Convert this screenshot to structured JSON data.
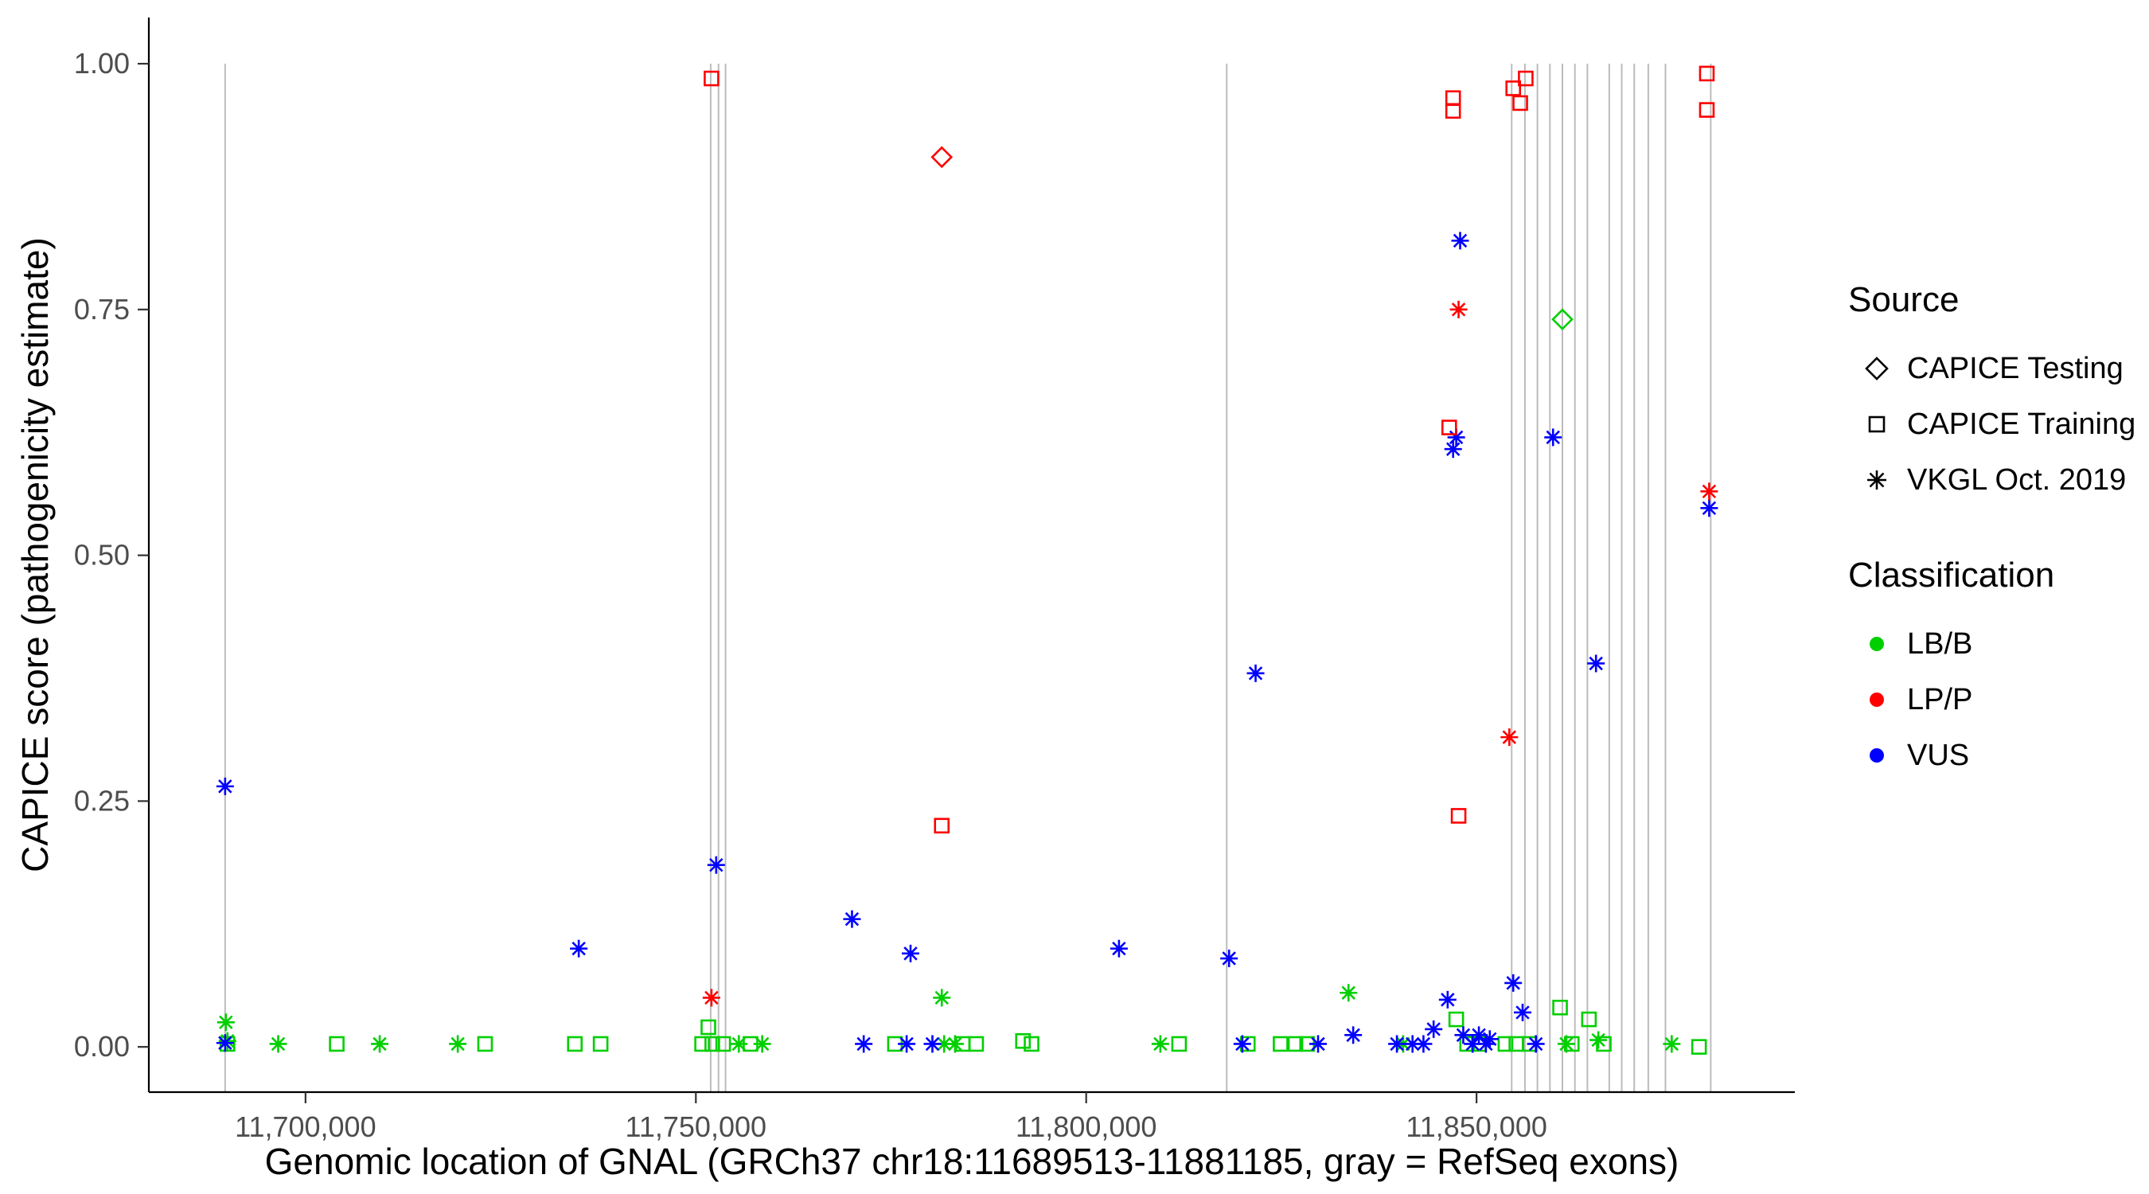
{
  "page": {
    "background": "#ffffff"
  },
  "chart_data": {
    "type": "scatter",
    "title": "",
    "xlabel": "Genomic location of GNAL (GRCh37 chr18:11689513-11881185, gray = RefSeq exons)",
    "ylabel": "CAPICE score (pathogenicity estimate)",
    "x_range": [
      11679929,
      11890769
    ],
    "y_range": [
      -0.046,
      1.047
    ],
    "x_ticks": [
      {
        "value": 11700000,
        "label": "11,700,000"
      },
      {
        "value": 11750000,
        "label": "11,750,000"
      },
      {
        "value": 11800000,
        "label": "11,800,000"
      },
      {
        "value": 11850000,
        "label": "11,850,000"
      }
    ],
    "y_ticks": [
      {
        "value": 0.0,
        "label": "0.00"
      },
      {
        "value": 0.25,
        "label": "0.25"
      },
      {
        "value": 0.5,
        "label": "0.50"
      },
      {
        "value": 0.75,
        "label": "0.75"
      },
      {
        "value": 1.0,
        "label": "1.00"
      }
    ],
    "grid": false,
    "legend_position": "right",
    "exon_color": "#bcbcbc",
    "colors": {
      "lbb": "#00CF00",
      "lpp": "#FF0000",
      "vus": "#0000FF"
    },
    "class_labels": {
      "lbb": "LB/B",
      "lpp": "LP/P",
      "vus": "VUS"
    },
    "source_labels": {
      "testing": "CAPICE Testing",
      "training": "CAPICE Training",
      "vkgl": "VKGL Oct. 2019"
    },
    "exons": [
      11689700,
      11751900,
      11752900,
      11753800,
      11818000,
      11854500,
      11856200,
      11857800,
      11859400,
      11861000,
      11862600,
      11864200,
      11867000,
      11868600,
      11870200,
      11872000,
      11874200,
      11880000
    ],
    "points": [
      {
        "x": 11690000,
        "y": 0.003,
        "source": "training",
        "cls": "lbb"
      },
      {
        "x": 11704000,
        "y": 0.003,
        "source": "training",
        "cls": "lbb"
      },
      {
        "x": 11723000,
        "y": 0.003,
        "source": "training",
        "cls": "lbb"
      },
      {
        "x": 11734500,
        "y": 0.003,
        "source": "training",
        "cls": "lbb"
      },
      {
        "x": 11737800,
        "y": 0.003,
        "source": "training",
        "cls": "lbb"
      },
      {
        "x": 11750800,
        "y": 0.003,
        "source": "training",
        "cls": "lbb"
      },
      {
        "x": 11751600,
        "y": 0.02,
        "source": "training",
        "cls": "lbb"
      },
      {
        "x": 11752100,
        "y": 0.003,
        "source": "training",
        "cls": "lbb"
      },
      {
        "x": 11753500,
        "y": 0.003,
        "source": "training",
        "cls": "lbb"
      },
      {
        "x": 11757000,
        "y": 0.003,
        "source": "training",
        "cls": "lbb"
      },
      {
        "x": 11775500,
        "y": 0.003,
        "source": "training",
        "cls": "lbb"
      },
      {
        "x": 11784200,
        "y": 0.003,
        "source": "training",
        "cls": "lbb"
      },
      {
        "x": 11785900,
        "y": 0.003,
        "source": "training",
        "cls": "lbb"
      },
      {
        "x": 11791900,
        "y": 0.006,
        "source": "training",
        "cls": "lbb"
      },
      {
        "x": 11793000,
        "y": 0.003,
        "source": "training",
        "cls": "lbb"
      },
      {
        "x": 11811900,
        "y": 0.003,
        "source": "training",
        "cls": "lbb"
      },
      {
        "x": 11820700,
        "y": 0.003,
        "source": "training",
        "cls": "lbb"
      },
      {
        "x": 11824900,
        "y": 0.003,
        "source": "training",
        "cls": "lbb"
      },
      {
        "x": 11826800,
        "y": 0.003,
        "source": "training",
        "cls": "lbb"
      },
      {
        "x": 11828300,
        "y": 0.003,
        "source": "training",
        "cls": "lbb"
      },
      {
        "x": 11847400,
        "y": 0.028,
        "source": "training",
        "cls": "lbb"
      },
      {
        "x": 11848800,
        "y": 0.003,
        "source": "training",
        "cls": "lbb"
      },
      {
        "x": 11850300,
        "y": 0.003,
        "source": "training",
        "cls": "lbb"
      },
      {
        "x": 11853700,
        "y": 0.003,
        "source": "training",
        "cls": "lbb"
      },
      {
        "x": 11855100,
        "y": 0.003,
        "source": "training",
        "cls": "lbb"
      },
      {
        "x": 11856800,
        "y": 0.003,
        "source": "training",
        "cls": "lbb"
      },
      {
        "x": 11860700,
        "y": 0.04,
        "source": "training",
        "cls": "lbb"
      },
      {
        "x": 11862200,
        "y": 0.003,
        "source": "training",
        "cls": "lbb"
      },
      {
        "x": 11864400,
        "y": 0.028,
        "source": "training",
        "cls": "lbb"
      },
      {
        "x": 11866300,
        "y": 0.003,
        "source": "training",
        "cls": "lbb"
      },
      {
        "x": 11878500,
        "y": 0.0,
        "source": "training",
        "cls": "lbb"
      },
      {
        "x": 11689800,
        "y": 0.025,
        "source": "vkgl",
        "cls": "lbb"
      },
      {
        "x": 11690000,
        "y": 0.006,
        "source": "vkgl",
        "cls": "lbb"
      },
      {
        "x": 11696500,
        "y": 0.003,
        "source": "vkgl",
        "cls": "lbb"
      },
      {
        "x": 11709500,
        "y": 0.003,
        "source": "vkgl",
        "cls": "lbb"
      },
      {
        "x": 11719500,
        "y": 0.003,
        "source": "vkgl",
        "cls": "lbb"
      },
      {
        "x": 11755500,
        "y": 0.003,
        "source": "vkgl",
        "cls": "lbb"
      },
      {
        "x": 11758500,
        "y": 0.003,
        "source": "vkgl",
        "cls": "lbb"
      },
      {
        "x": 11781500,
        "y": 0.05,
        "source": "vkgl",
        "cls": "lbb"
      },
      {
        "x": 11781800,
        "y": 0.003,
        "source": "vkgl",
        "cls": "lbb"
      },
      {
        "x": 11783200,
        "y": 0.003,
        "source": "vkgl",
        "cls": "lbb"
      },
      {
        "x": 11809500,
        "y": 0.003,
        "source": "vkgl",
        "cls": "lbb"
      },
      {
        "x": 11833600,
        "y": 0.055,
        "source": "vkgl",
        "cls": "lbb"
      },
      {
        "x": 11840600,
        "y": 0.003,
        "source": "vkgl",
        "cls": "lbb"
      },
      {
        "x": 11861500,
        "y": 0.003,
        "source": "vkgl",
        "cls": "lbb"
      },
      {
        "x": 11865600,
        "y": 0.007,
        "source": "vkgl",
        "cls": "lbb"
      },
      {
        "x": 11875000,
        "y": 0.003,
        "source": "vkgl",
        "cls": "lbb"
      },
      {
        "x": 11689700,
        "y": 0.265,
        "source": "vkgl",
        "cls": "vus"
      },
      {
        "x": 11689700,
        "y": 0.004,
        "source": "vkgl",
        "cls": "vus"
      },
      {
        "x": 11735000,
        "y": 0.1,
        "source": "vkgl",
        "cls": "vus"
      },
      {
        "x": 11752600,
        "y": 0.185,
        "source": "vkgl",
        "cls": "vus"
      },
      {
        "x": 11770000,
        "y": 0.13,
        "source": "vkgl",
        "cls": "vus"
      },
      {
        "x": 11771500,
        "y": 0.003,
        "source": "vkgl",
        "cls": "vus"
      },
      {
        "x": 11777000,
        "y": 0.003,
        "source": "vkgl",
        "cls": "vus"
      },
      {
        "x": 11777500,
        "y": 0.095,
        "source": "vkgl",
        "cls": "vus"
      },
      {
        "x": 11780300,
        "y": 0.003,
        "source": "vkgl",
        "cls": "vus"
      },
      {
        "x": 11804200,
        "y": 0.1,
        "source": "vkgl",
        "cls": "vus"
      },
      {
        "x": 11818300,
        "y": 0.09,
        "source": "vkgl",
        "cls": "vus"
      },
      {
        "x": 11820000,
        "y": 0.003,
        "source": "vkgl",
        "cls": "vus"
      },
      {
        "x": 11821700,
        "y": 0.38,
        "source": "vkgl",
        "cls": "vus"
      },
      {
        "x": 11829700,
        "y": 0.003,
        "source": "vkgl",
        "cls": "vus"
      },
      {
        "x": 11834200,
        "y": 0.012,
        "source": "vkgl",
        "cls": "vus"
      },
      {
        "x": 11839800,
        "y": 0.003,
        "source": "vkgl",
        "cls": "vus"
      },
      {
        "x": 11841800,
        "y": 0.003,
        "source": "vkgl",
        "cls": "vus"
      },
      {
        "x": 11843200,
        "y": 0.003,
        "source": "vkgl",
        "cls": "vus"
      },
      {
        "x": 11844500,
        "y": 0.018,
        "source": "vkgl",
        "cls": "vus"
      },
      {
        "x": 11846300,
        "y": 0.048,
        "source": "vkgl",
        "cls": "vus"
      },
      {
        "x": 11847000,
        "y": 0.608,
        "source": "vkgl",
        "cls": "vus"
      },
      {
        "x": 11847400,
        "y": 0.62,
        "source": "vkgl",
        "cls": "vus"
      },
      {
        "x": 11847900,
        "y": 0.82,
        "source": "vkgl",
        "cls": "vus"
      },
      {
        "x": 11848300,
        "y": 0.012,
        "source": "vkgl",
        "cls": "vus"
      },
      {
        "x": 11849500,
        "y": 0.003,
        "source": "vkgl",
        "cls": "vus"
      },
      {
        "x": 11850300,
        "y": 0.012,
        "source": "vkgl",
        "cls": "vus"
      },
      {
        "x": 11851200,
        "y": 0.003,
        "source": "vkgl",
        "cls": "vus"
      },
      {
        "x": 11851700,
        "y": 0.008,
        "source": "vkgl",
        "cls": "vus"
      },
      {
        "x": 11854700,
        "y": 0.065,
        "source": "vkgl",
        "cls": "vus"
      },
      {
        "x": 11855900,
        "y": 0.035,
        "source": "vkgl",
        "cls": "vus"
      },
      {
        "x": 11857600,
        "y": 0.003,
        "source": "vkgl",
        "cls": "vus"
      },
      {
        "x": 11859800,
        "y": 0.62,
        "source": "vkgl",
        "cls": "vus"
      },
      {
        "x": 11865300,
        "y": 0.39,
        "source": "vkgl",
        "cls": "vus"
      },
      {
        "x": 11879800,
        "y": 0.548,
        "source": "vkgl",
        "cls": "vus"
      },
      {
        "x": 11752000,
        "y": 0.985,
        "source": "training",
        "cls": "lpp"
      },
      {
        "x": 11781500,
        "y": 0.225,
        "source": "training",
        "cls": "lpp"
      },
      {
        "x": 11846500,
        "y": 0.63,
        "source": "training",
        "cls": "lpp"
      },
      {
        "x": 11847000,
        "y": 0.965,
        "source": "training",
        "cls": "lpp"
      },
      {
        "x": 11847000,
        "y": 0.952,
        "source": "training",
        "cls": "lpp"
      },
      {
        "x": 11847700,
        "y": 0.235,
        "source": "training",
        "cls": "lpp"
      },
      {
        "x": 11854700,
        "y": 0.975,
        "source": "training",
        "cls": "lpp"
      },
      {
        "x": 11855600,
        "y": 0.96,
        "source": "training",
        "cls": "lpp"
      },
      {
        "x": 11856300,
        "y": 0.985,
        "source": "training",
        "cls": "lpp"
      },
      {
        "x": 11879500,
        "y": 0.99,
        "source": "training",
        "cls": "lpp"
      },
      {
        "x": 11879500,
        "y": 0.953,
        "source": "training",
        "cls": "lpp"
      },
      {
        "x": 11752000,
        "y": 0.05,
        "source": "vkgl",
        "cls": "lpp"
      },
      {
        "x": 11847700,
        "y": 0.75,
        "source": "vkgl",
        "cls": "lpp"
      },
      {
        "x": 11854200,
        "y": 0.315,
        "source": "vkgl",
        "cls": "lpp"
      },
      {
        "x": 11879800,
        "y": 0.565,
        "source": "vkgl",
        "cls": "lpp"
      },
      {
        "x": 11781500,
        "y": 0.905,
        "source": "testing",
        "cls": "lpp"
      },
      {
        "x": 11861000,
        "y": 0.74,
        "source": "testing",
        "cls": "lbb"
      }
    ]
  },
  "legend": {
    "source": {
      "title": "Source",
      "items": [
        {
          "label": "CAPICE Testing",
          "shape": "diamond"
        },
        {
          "label": "CAPICE Training",
          "shape": "square"
        },
        {
          "label": "VKGL Oct. 2019",
          "shape": "asterisk"
        }
      ]
    },
    "classification": {
      "title": "Classification",
      "items": [
        {
          "label": "LB/B",
          "color_key": "lbb"
        },
        {
          "label": "LP/P",
          "color_key": "lpp"
        },
        {
          "label": "VUS",
          "color_key": "vus"
        }
      ]
    }
  }
}
